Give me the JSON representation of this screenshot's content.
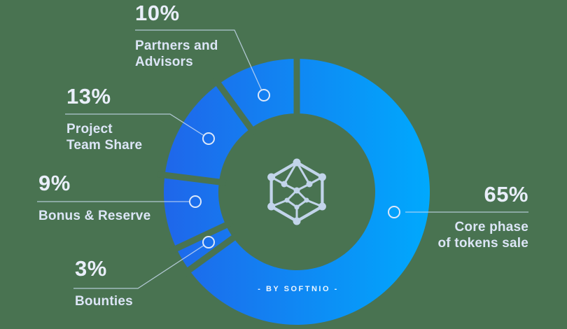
{
  "background_color": "#497351",
  "chart_data": {
    "type": "pie",
    "subtype": "donut",
    "title": "",
    "segments": [
      {
        "label": "Core phase of tokens sale",
        "value": 65
      },
      {
        "label": "Bounties",
        "value": 3
      },
      {
        "label": "Bonus & Reserve",
        "value": 9
      },
      {
        "label": "Project Team Share",
        "value": 13
      },
      {
        "label": "Partners and Advisors",
        "value": 10
      }
    ],
    "start_angle_deg": 0,
    "direction": "clockwise",
    "donut_hole_ratio": 0.59,
    "gradient": {
      "start": "#1F66EA",
      "end": "#00A9FD"
    },
    "gap_color": "#497351",
    "legend_position": "callout-labels"
  },
  "labels": {
    "partners": {
      "pct": "10%",
      "lines": [
        "Partners and",
        "Advisors"
      ]
    },
    "team": {
      "pct": "13%",
      "lines": [
        "Project",
        "Team Share"
      ]
    },
    "bonus": {
      "pct": "9%",
      "lines": [
        "Bonus & Reserve"
      ]
    },
    "bounties": {
      "pct": "3%",
      "lines": [
        "Bounties"
      ]
    },
    "core": {
      "pct": "65%",
      "lines": [
        "Core phase",
        "of tokens sale"
      ]
    }
  },
  "center_logo": {
    "name": "softnio-hexagon-network-logo"
  },
  "byline": "- BY SOFTNIO -",
  "text_colors": {
    "percent": "#E9EEFA",
    "label": "#DCE5F6",
    "callout_line": "#CBDCF3"
  }
}
